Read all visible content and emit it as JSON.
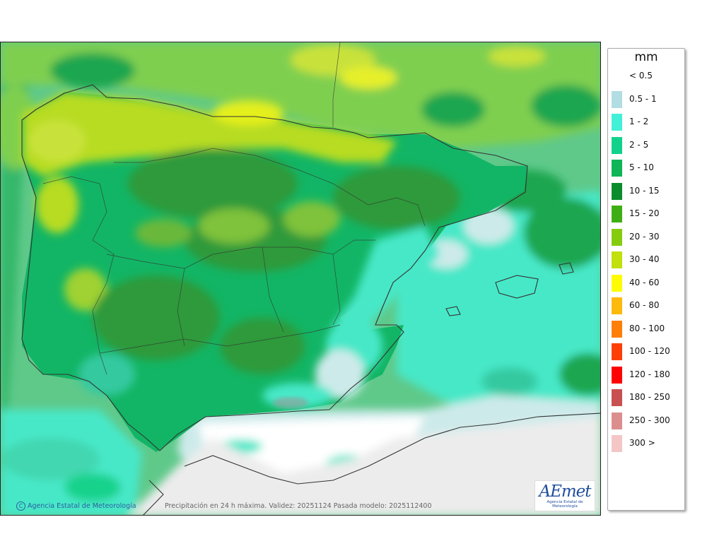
{
  "map": {
    "copyright_text": "Agencia Estatal de Meteorología",
    "copyright_symbol": "C",
    "caption": "Precipitación en 24 h máxima. Validez: 20251124 Pasada modelo: 2025112400",
    "logo_text": "AEmet",
    "logo_subtext": "Agencia Estatal de Meteorología"
  },
  "legend": {
    "unit": "mm",
    "items": [
      {
        "label": "< 0.5",
        "color": "#ffffff"
      },
      {
        "label": "0.5 - 1",
        "color": "#b2dde2"
      },
      {
        "label": "1 - 2",
        "color": "#42f0d7"
      },
      {
        "label": "2 - 5",
        "color": "#12d28b"
      },
      {
        "label": "5 - 10",
        "color": "#0fb558"
      },
      {
        "label": "10 - 15",
        "color": "#0a8c2d"
      },
      {
        "label": "15 - 20",
        "color": "#3fae14"
      },
      {
        "label": "20 - 30",
        "color": "#86cc0e"
      },
      {
        "label": "30 - 40",
        "color": "#c2e00c"
      },
      {
        "label": "40 - 60",
        "color": "#fdfc04"
      },
      {
        "label": "60 - 80",
        "color": "#fdb90c"
      },
      {
        "label": "80 - 100",
        "color": "#fd7f07"
      },
      {
        "label": "100 - 120",
        "color": "#fd3f07"
      },
      {
        "label": "120 - 180",
        "color": "#fd0404"
      },
      {
        "label": "180 - 250",
        "color": "#c85050"
      },
      {
        "label": "250 - 300",
        "color": "#dc8e8e"
      },
      {
        "label": "300 >",
        "color": "#f4c6c6"
      }
    ]
  }
}
